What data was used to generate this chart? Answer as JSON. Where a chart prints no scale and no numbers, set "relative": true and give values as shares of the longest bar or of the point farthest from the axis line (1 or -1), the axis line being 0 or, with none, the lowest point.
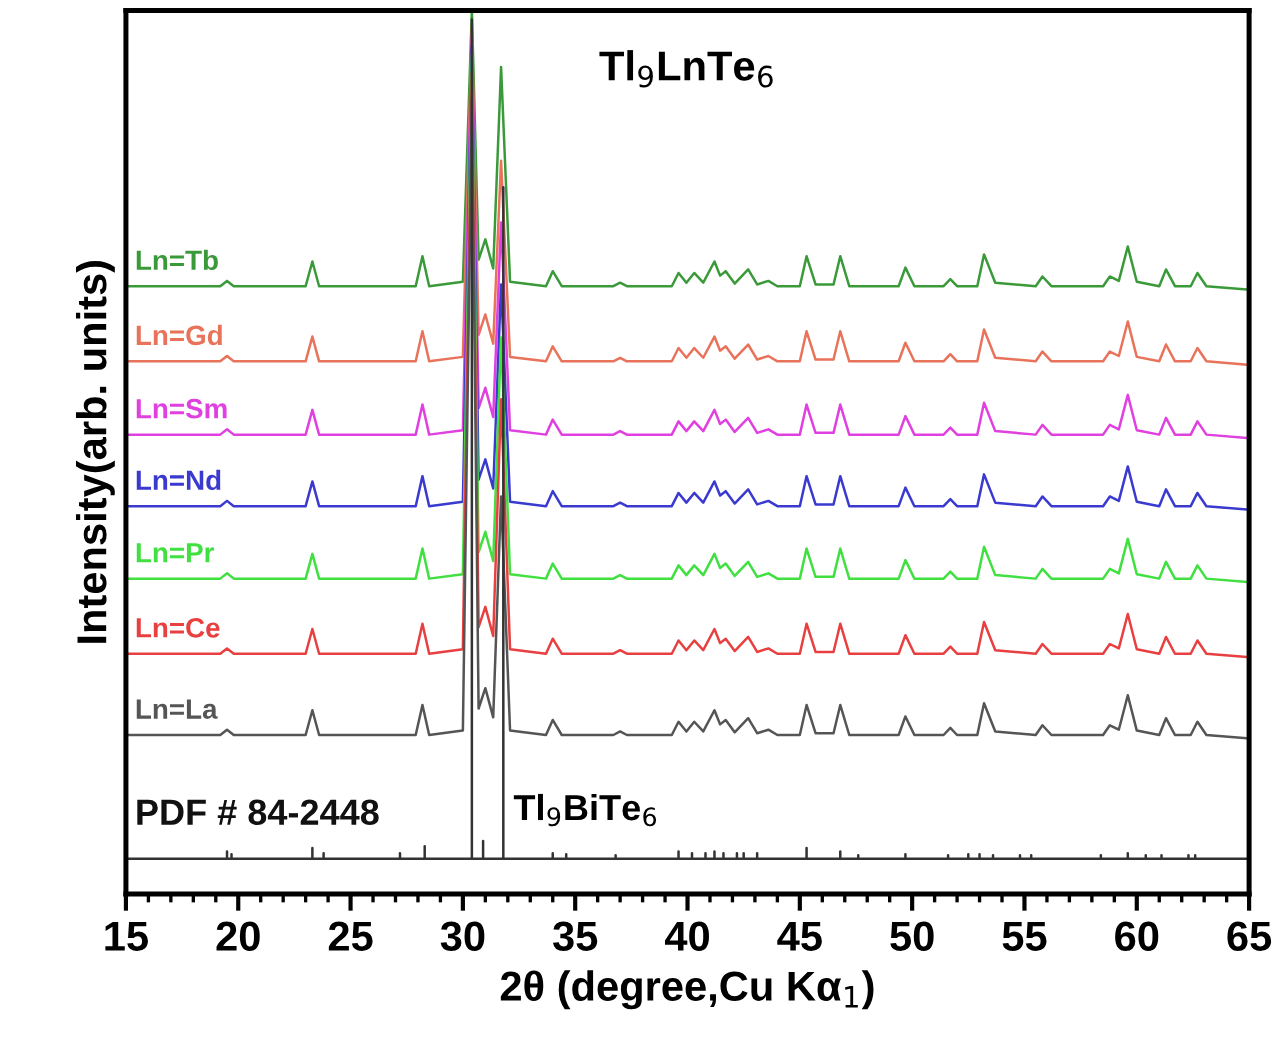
{
  "chart_data": {
    "type": "line",
    "relative": true,
    "title": "Tl$_{9}$LnTe$_{6}$",
    "xlabel": "2θ (degree,Cu Kα$_{1}$)",
    "ylabel": "Intensity(arb. units)",
    "xlim": [
      15,
      65
    ],
    "xticks": [
      15,
      20,
      25,
      30,
      35,
      40,
      45,
      50,
      55,
      60,
      65
    ],
    "legend": false,
    "grid": false,
    "annotations": [
      "Tl$_{9}$BiTe$_{6}$"
    ],
    "x": [
      15,
      19.2,
      19.5,
      19.8,
      23.0,
      23.3,
      23.6,
      27.9,
      28.2,
      28.5,
      30.0,
      30.4,
      30.7,
      31.0,
      31.35,
      31.7,
      32.1,
      33.7,
      34.0,
      34.4,
      36.7,
      37.0,
      37.3,
      39.3,
      39.6,
      39.95,
      40.3,
      40.7,
      41.2,
      41.45,
      41.7,
      42.1,
      42.7,
      43.1,
      43.6,
      44.0,
      45.0,
      45.3,
      45.7,
      46.5,
      46.8,
      47.2,
      49.4,
      49.7,
      50.1,
      51.4,
      51.7,
      52.0,
      52.9,
      53.2,
      53.7,
      55.5,
      55.8,
      56.2,
      58.5,
      58.8,
      59.2,
      59.6,
      60.0,
      61.0,
      61.3,
      61.7,
      62.4,
      62.7,
      63.1,
      65
    ],
    "series": [
      {
        "name": "Ln=Tb",
        "color": "#3a9a3a",
        "values": [
          0.688,
          0.688,
          0.694,
          0.688,
          0.688,
          0.716,
          0.688,
          0.688,
          0.722,
          0.688,
          0.693,
          1.0,
          0.718,
          0.741,
          0.708,
          0.936,
          0.693,
          0.688,
          0.705,
          0.688,
          0.688,
          0.692,
          0.688,
          0.688,
          0.703,
          0.692,
          0.703,
          0.692,
          0.716,
          0.7,
          0.705,
          0.691,
          0.707,
          0.69,
          0.694,
          0.688,
          0.688,
          0.722,
          0.69,
          0.69,
          0.722,
          0.688,
          0.688,
          0.709,
          0.688,
          0.688,
          0.696,
          0.688,
          0.688,
          0.724,
          0.692,
          0.688,
          0.699,
          0.688,
          0.688,
          0.699,
          0.694,
          0.733,
          0.693,
          0.688,
          0.707,
          0.688,
          0.688,
          0.703,
          0.688,
          0.684
        ]
      },
      {
        "name": "Ln=Gd",
        "color": "#e8735a",
        "values": [
          0.603,
          0.603,
          0.609,
          0.603,
          0.603,
          0.631,
          0.603,
          0.603,
          0.637,
          0.603,
          0.608,
          0.98,
          0.633,
          0.656,
          0.623,
          0.83,
          0.608,
          0.603,
          0.62,
          0.603,
          0.603,
          0.607,
          0.603,
          0.603,
          0.618,
          0.607,
          0.618,
          0.607,
          0.631,
          0.615,
          0.62,
          0.606,
          0.622,
          0.605,
          0.609,
          0.603,
          0.603,
          0.637,
          0.605,
          0.605,
          0.637,
          0.603,
          0.603,
          0.624,
          0.603,
          0.603,
          0.611,
          0.603,
          0.603,
          0.639,
          0.607,
          0.603,
          0.614,
          0.603,
          0.603,
          0.614,
          0.609,
          0.648,
          0.608,
          0.603,
          0.622,
          0.603,
          0.603,
          0.618,
          0.603,
          0.599
        ]
      },
      {
        "name": "Ln=Sm",
        "color": "#e040e0",
        "values": [
          0.52,
          0.52,
          0.526,
          0.52,
          0.52,
          0.548,
          0.52,
          0.52,
          0.554,
          0.52,
          0.525,
          0.97,
          0.55,
          0.573,
          0.54,
          0.76,
          0.525,
          0.52,
          0.537,
          0.52,
          0.52,
          0.524,
          0.52,
          0.52,
          0.535,
          0.524,
          0.535,
          0.524,
          0.548,
          0.532,
          0.537,
          0.523,
          0.539,
          0.522,
          0.526,
          0.52,
          0.52,
          0.554,
          0.522,
          0.522,
          0.554,
          0.52,
          0.52,
          0.541,
          0.52,
          0.52,
          0.528,
          0.52,
          0.52,
          0.556,
          0.524,
          0.52,
          0.531,
          0.52,
          0.52,
          0.531,
          0.526,
          0.565,
          0.525,
          0.52,
          0.539,
          0.52,
          0.52,
          0.535,
          0.52,
          0.516
        ]
      },
      {
        "name": "Ln=Nd",
        "color": "#3a3ad0",
        "values": [
          0.439,
          0.439,
          0.445,
          0.439,
          0.439,
          0.467,
          0.439,
          0.439,
          0.473,
          0.439,
          0.444,
          0.96,
          0.469,
          0.492,
          0.459,
          0.69,
          0.444,
          0.439,
          0.456,
          0.439,
          0.439,
          0.443,
          0.439,
          0.439,
          0.454,
          0.443,
          0.454,
          0.443,
          0.467,
          0.451,
          0.456,
          0.442,
          0.458,
          0.441,
          0.445,
          0.439,
          0.439,
          0.473,
          0.441,
          0.441,
          0.473,
          0.439,
          0.439,
          0.46,
          0.439,
          0.439,
          0.447,
          0.439,
          0.439,
          0.475,
          0.443,
          0.439,
          0.45,
          0.439,
          0.439,
          0.45,
          0.445,
          0.484,
          0.444,
          0.439,
          0.458,
          0.439,
          0.439,
          0.454,
          0.439,
          0.435
        ]
      },
      {
        "name": "Ln=Pr",
        "color": "#40e040",
        "values": [
          0.357,
          0.357,
          0.363,
          0.357,
          0.357,
          0.385,
          0.357,
          0.357,
          0.391,
          0.357,
          0.362,
          0.95,
          0.387,
          0.41,
          0.377,
          0.63,
          0.362,
          0.357,
          0.374,
          0.357,
          0.357,
          0.361,
          0.357,
          0.357,
          0.372,
          0.361,
          0.372,
          0.361,
          0.385,
          0.369,
          0.374,
          0.36,
          0.376,
          0.359,
          0.363,
          0.357,
          0.357,
          0.391,
          0.359,
          0.359,
          0.391,
          0.357,
          0.357,
          0.378,
          0.357,
          0.357,
          0.365,
          0.357,
          0.357,
          0.393,
          0.361,
          0.357,
          0.368,
          0.357,
          0.357,
          0.368,
          0.363,
          0.402,
          0.362,
          0.357,
          0.376,
          0.357,
          0.357,
          0.372,
          0.357,
          0.353
        ]
      },
      {
        "name": "Ln=Ce",
        "color": "#e84040",
        "values": [
          0.272,
          0.272,
          0.278,
          0.272,
          0.272,
          0.3,
          0.272,
          0.272,
          0.306,
          0.272,
          0.277,
          0.93,
          0.302,
          0.325,
          0.292,
          0.56,
          0.277,
          0.272,
          0.289,
          0.272,
          0.272,
          0.276,
          0.272,
          0.272,
          0.287,
          0.276,
          0.287,
          0.276,
          0.3,
          0.284,
          0.289,
          0.275,
          0.291,
          0.274,
          0.278,
          0.272,
          0.272,
          0.306,
          0.274,
          0.274,
          0.306,
          0.272,
          0.272,
          0.293,
          0.272,
          0.272,
          0.28,
          0.272,
          0.272,
          0.308,
          0.276,
          0.272,
          0.283,
          0.272,
          0.272,
          0.283,
          0.278,
          0.317,
          0.277,
          0.272,
          0.291,
          0.272,
          0.272,
          0.287,
          0.272,
          0.268
        ]
      },
      {
        "name": "Ln=La",
        "color": "#555555",
        "values": [
          0.18,
          0.18,
          0.186,
          0.18,
          0.18,
          0.208,
          0.18,
          0.18,
          0.214,
          0.18,
          0.185,
          0.9,
          0.21,
          0.233,
          0.2,
          0.45,
          0.185,
          0.18,
          0.197,
          0.18,
          0.18,
          0.184,
          0.18,
          0.18,
          0.195,
          0.184,
          0.195,
          0.184,
          0.208,
          0.192,
          0.197,
          0.183,
          0.199,
          0.182,
          0.186,
          0.18,
          0.18,
          0.214,
          0.182,
          0.182,
          0.214,
          0.18,
          0.18,
          0.201,
          0.18,
          0.18,
          0.188,
          0.18,
          0.18,
          0.216,
          0.184,
          0.18,
          0.191,
          0.18,
          0.18,
          0.191,
          0.186,
          0.225,
          0.185,
          0.18,
          0.199,
          0.18,
          0.18,
          0.195,
          0.18,
          0.176
        ]
      },
      {
        "name": "PDF # 84-2448",
        "color": "#333333",
        "x": [
          15,
          19.5,
          19.5,
          19.5,
          19.7,
          19.7,
          19.7,
          23.3,
          23.3,
          23.3,
          23.8,
          23.8,
          23.8,
          27.2,
          27.2,
          27.2,
          28.3,
          28.3,
          28.3,
          30.4,
          30.4,
          30.4,
          30.9,
          30.9,
          30.9,
          31.8,
          31.8,
          31.8,
          34.0,
          34.0,
          34.0,
          34.6,
          34.6,
          34.6,
          36.8,
          36.8,
          36.8,
          39.6,
          39.6,
          39.6,
          40.2,
          40.2,
          40.2,
          40.8,
          40.8,
          40.8,
          41.2,
          41.2,
          41.2,
          41.6,
          41.6,
          41.6,
          42.2,
          42.2,
          42.2,
          42.5,
          42.5,
          42.5,
          43.1,
          43.1,
          43.1,
          45.3,
          45.3,
          45.3,
          46.8,
          46.8,
          46.8,
          47.6,
          47.6,
          47.6,
          49.7,
          49.7,
          49.7,
          51.6,
          51.6,
          51.6,
          52.5,
          52.5,
          52.5,
          53.0,
          53.0,
          53.0,
          53.6,
          53.6,
          53.6,
          54.8,
          54.8,
          54.8,
          55.3,
          55.3,
          55.3,
          58.4,
          58.4,
          58.4,
          59.6,
          59.6,
          59.6,
          60.4,
          60.4,
          60.4,
          61.1,
          61.1,
          61.1,
          62.3,
          62.3,
          62.3,
          62.6,
          62.6,
          62.6,
          65
        ],
        "values": [
          0.04,
          0.04,
          0.048,
          0.04,
          0.04,
          0.045,
          0.04,
          0.04,
          0.052,
          0.04,
          0.04,
          0.046,
          0.04,
          0.04,
          0.046,
          0.04,
          0.04,
          0.054,
          0.04,
          0.04,
          0.99,
          0.04,
          0.04,
          0.06,
          0.04,
          0.04,
          0.8,
          0.04,
          0.04,
          0.046,
          0.04,
          0.04,
          0.045,
          0.04,
          0.04,
          0.044,
          0.04,
          0.04,
          0.048,
          0.04,
          0.04,
          0.046,
          0.04,
          0.04,
          0.046,
          0.04,
          0.04,
          0.048,
          0.04,
          0.04,
          0.046,
          0.04,
          0.04,
          0.046,
          0.04,
          0.04,
          0.046,
          0.04,
          0.04,
          0.046,
          0.04,
          0.04,
          0.052,
          0.04,
          0.04,
          0.048,
          0.04,
          0.04,
          0.044,
          0.04,
          0.04,
          0.045,
          0.04,
          0.04,
          0.044,
          0.04,
          0.04,
          0.045,
          0.04,
          0.04,
          0.045,
          0.04,
          0.04,
          0.044,
          0.04,
          0.04,
          0.044,
          0.04,
          0.04,
          0.044,
          0.04,
          0.04,
          0.044,
          0.04,
          0.04,
          0.046,
          0.04,
          0.04,
          0.044,
          0.04,
          0.04,
          0.044,
          0.04,
          0.04,
          0.044,
          0.04,
          0.04,
          0.044,
          0.04,
          0.04
        ]
      }
    ]
  }
}
